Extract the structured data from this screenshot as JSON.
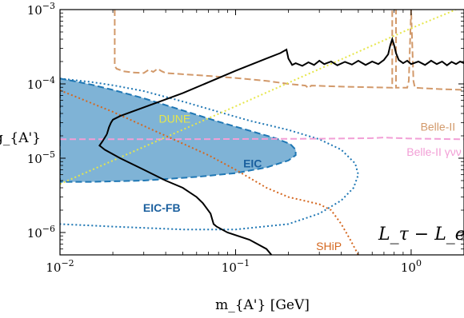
{
  "chart_data": {
    "type": "line",
    "xscale": "log",
    "yscale": "log",
    "xlim": [
      0.01,
      2.0
    ],
    "ylim": [
      5e-07,
      0.001
    ],
    "xlabel": "m_{A'} [GeV]",
    "ylabel": "g_{A'}",
    "xticks": [
      {
        "value": 0.01,
        "base": "10",
        "exp": "−2"
      },
      {
        "value": 0.1,
        "base": "10",
        "exp": "−1"
      },
      {
        "value": 1.0,
        "base": "10",
        "exp": "0"
      }
    ],
    "yticks": [
      {
        "value": 1e-06,
        "base": "10",
        "exp": "−6"
      },
      {
        "value": 1e-05,
        "base": "10",
        "exp": "−5"
      },
      {
        "value": 0.0001,
        "base": "10",
        "exp": "−4"
      },
      {
        "value": 0.001,
        "base": "10",
        "exp": "−3"
      }
    ],
    "corner_label": "L_τ − L_e",
    "series": [
      {
        "name": "EIC",
        "style": "filled-dashed",
        "color": "#1f77b4",
        "fill": "#7fb3d6",
        "points": [
          [
            0.01,
            0.000118
          ],
          [
            0.012,
            0.000109
          ],
          [
            0.015,
            9.8e-05
          ],
          [
            0.02,
            8.3e-05
          ],
          [
            0.03,
            6.4e-05
          ],
          [
            0.05,
            4.4e-05
          ],
          [
            0.08,
            3.1e-05
          ],
          [
            0.12,
            2.35e-05
          ],
          [
            0.17,
            1.85e-05
          ],
          [
            0.205,
            1.55e-05
          ],
          [
            0.22,
            1.3e-05
          ],
          [
            0.22,
            1.1e-05
          ],
          [
            0.2,
            9.3e-06
          ],
          [
            0.15,
            7.5e-06
          ],
          [
            0.1,
            6.3e-06
          ],
          [
            0.06,
            5.6e-06
          ],
          [
            0.03,
            5e-06
          ],
          [
            0.015,
            4.8e-06
          ],
          [
            0.01,
            4.8e-06
          ]
        ],
        "label_pos": [
          0.125,
          7.5e-06
        ]
      },
      {
        "name": "EIC-FB",
        "style": "dotted",
        "color": "#1f77b4",
        "points": [
          [
            0.01,
            0.000118
          ],
          [
            0.015,
            0.000106
          ],
          [
            0.02,
            9.6e-05
          ],
          [
            0.03,
            8e-05
          ],
          [
            0.05,
            5.8e-05
          ],
          [
            0.08,
            4.2e-05
          ],
          [
            0.12,
            3.2e-05
          ],
          [
            0.2,
            2.4e-05
          ],
          [
            0.3,
            1.8e-05
          ],
          [
            0.4,
            1.3e-05
          ],
          [
            0.48,
            8.5e-06
          ],
          [
            0.5,
            6e-06
          ],
          [
            0.47,
            4e-06
          ],
          [
            0.4,
            2.7e-06
          ],
          [
            0.3,
            1.8e-06
          ],
          [
            0.2,
            1.3e-06
          ],
          [
            0.1,
            1.1e-06
          ],
          [
            0.05,
            1.1e-06
          ],
          [
            0.02,
            1.2e-06
          ],
          [
            0.01,
            1.3e-06
          ]
        ],
        "label_pos": [
          0.038,
          1.9e-06
        ]
      },
      {
        "name": "Belle-II",
        "style": "dashed",
        "color": "#d2996a",
        "points": [
          [
            0.0205,
            0.001
          ],
          [
            0.0205,
            0.000175
          ],
          [
            0.021,
            0.00016
          ],
          [
            0.023,
            0.000148
          ],
          [
            0.026,
            0.000142
          ],
          [
            0.03,
            0.00014
          ],
          [
            0.032,
            0.000155
          ],
          [
            0.034,
            0.000145
          ],
          [
            0.036,
            0.00016
          ],
          [
            0.038,
            0.000148
          ],
          [
            0.04,
            0.00014
          ],
          [
            0.05,
            0.000135
          ],
          [
            0.07,
            0.000128
          ],
          [
            0.1,
            0.00012
          ],
          [
            0.15,
            0.00011
          ],
          [
            0.2,
            0.0001
          ],
          [
            0.25,
            9.5e-05
          ],
          [
            0.26,
            8.8e-05
          ],
          [
            0.27,
            9.5e-05
          ],
          [
            0.4,
            9.2e-05
          ],
          [
            0.6,
            9e-05
          ],
          [
            0.78,
            8.9e-05
          ],
          [
            0.78,
            0.001
          ],
          [
            0.82,
            0.001
          ],
          [
            0.82,
            8.9e-05
          ],
          [
            0.95,
            8.9e-05
          ],
          [
            0.97,
            0.00011
          ],
          [
            1.0,
            0.001
          ],
          [
            1.03,
            0.00011
          ],
          [
            1.05,
            8.9e-05
          ],
          [
            1.2,
            8.7e-05
          ],
          [
            1.5,
            8.5e-05
          ],
          [
            2.0,
            8.3e-05
          ]
        ],
        "label_pos": [
          1.42,
          2.35e-05
        ]
      },
      {
        "name": "Belle-II γνν",
        "style": "dashed",
        "color": "#f29fd6",
        "points": [
          [
            0.01,
            1.8e-05
          ],
          [
            0.03,
            1.8e-05
          ],
          [
            0.1,
            1.81e-05
          ],
          [
            0.3,
            1.83e-05
          ],
          [
            0.6,
            1.86e-05
          ],
          [
            0.7,
            1.9e-05
          ],
          [
            0.8,
            1.87e-05
          ],
          [
            1.0,
            1.84e-05
          ],
          [
            2.0,
            1.8e-05
          ]
        ],
        "label_pos": [
          1.35,
          1.08e-05
        ]
      },
      {
        "name": "DUNE",
        "style": "dotted",
        "color": "#e6e64a",
        "points": [
          [
            0.01,
            4.5e-06
          ],
          [
            0.1,
            5e-05
          ],
          [
            1.0,
            0.00056
          ],
          [
            1.8,
            0.001
          ]
        ],
        "label_pos": [
          0.045,
          3e-05
        ]
      },
      {
        "name": "SHiP",
        "style": "dotted",
        "color": "#d4671f",
        "points": [
          [
            0.01,
            8.2e-05
          ],
          [
            0.02,
            4.2e-05
          ],
          [
            0.04,
            2e-05
          ],
          [
            0.07,
            1.1e-05
          ],
          [
            0.1,
            7e-06
          ],
          [
            0.15,
            4e-06
          ],
          [
            0.2,
            3e-06
          ],
          [
            0.3,
            2.4e-06
          ],
          [
            0.35,
            2e-06
          ],
          [
            0.4,
            1.3e-06
          ],
          [
            0.45,
            8e-07
          ],
          [
            0.5,
            5e-07
          ]
        ],
        "label_pos": [
          0.34,
          5.8e-07
        ]
      },
      {
        "name": "",
        "style": "solid",
        "color": "#000000",
        "points": [
          [
            0.0185,
            2.1e-05
          ],
          [
            0.0175,
            1.7e-05
          ],
          [
            0.0168,
            1.48e-05
          ],
          [
            0.018,
            1.3e-05
          ],
          [
            0.022,
            1e-05
          ],
          [
            0.03,
            7e-06
          ],
          [
            0.04,
            5e-06
          ],
          [
            0.05,
            4e-06
          ],
          [
            0.06,
            3e-06
          ],
          [
            0.065,
            2.5e-06
          ],
          [
            0.072,
            1.8e-06
          ],
          [
            0.075,
            1.3e-06
          ],
          [
            0.078,
            1.2e-06
          ],
          [
            0.09,
            1e-06
          ],
          [
            0.12,
            8e-07
          ],
          [
            0.15,
            6e-07
          ],
          [
            0.16,
            5e-07
          ]
        ],
        "label_pos": null
      },
      {
        "name": "",
        "style": "solid",
        "color": "#000000",
        "points": [
          [
            0.0185,
            2.1e-05
          ],
          [
            0.019,
            2.6e-05
          ],
          [
            0.0195,
            3e-05
          ],
          [
            0.02,
            3.3e-05
          ],
          [
            0.022,
            3.7e-05
          ],
          [
            0.05,
            7.5e-05
          ],
          [
            0.1,
            0.00015
          ],
          [
            0.15,
            0.00022
          ],
          [
            0.18,
            0.00026
          ],
          [
            0.195,
            0.00029
          ],
          [
            0.2,
            0.00022
          ],
          [
            0.21,
            0.00018
          ],
          [
            0.22,
            0.00019
          ],
          [
            0.24,
            0.000175
          ],
          [
            0.26,
            0.000195
          ],
          [
            0.28,
            0.00018
          ],
          [
            0.3,
            0.000205
          ],
          [
            0.32,
            0.000185
          ],
          [
            0.35,
            0.0002
          ],
          [
            0.38,
            0.000178
          ],
          [
            0.42,
            0.000198
          ],
          [
            0.46,
            0.000182
          ],
          [
            0.5,
            0.000205
          ],
          [
            0.55,
            0.00018
          ],
          [
            0.6,
            0.0002
          ],
          [
            0.65,
            0.000185
          ],
          [
            0.7,
            0.00021
          ],
          [
            0.74,
            0.00025
          ],
          [
            0.76,
            0.00033
          ],
          [
            0.78,
            0.0004
          ],
          [
            0.8,
            0.00033
          ],
          [
            0.82,
            0.00026
          ],
          [
            0.85,
            0.00021
          ],
          [
            0.9,
            0.00019
          ],
          [
            0.95,
            0.000205
          ],
          [
            1.0,
            0.000185
          ],
          [
            1.1,
            0.0002
          ],
          [
            1.2,
            0.00018
          ],
          [
            1.3,
            0.000205
          ],
          [
            1.4,
            0.000185
          ],
          [
            1.5,
            0.0002
          ],
          [
            1.6,
            0.000178
          ],
          [
            1.7,
            0.000198
          ],
          [
            1.8,
            0.000185
          ],
          [
            1.9,
            0.0002
          ],
          [
            2.0,
            0.00019
          ]
        ],
        "label_pos": null
      }
    ]
  }
}
